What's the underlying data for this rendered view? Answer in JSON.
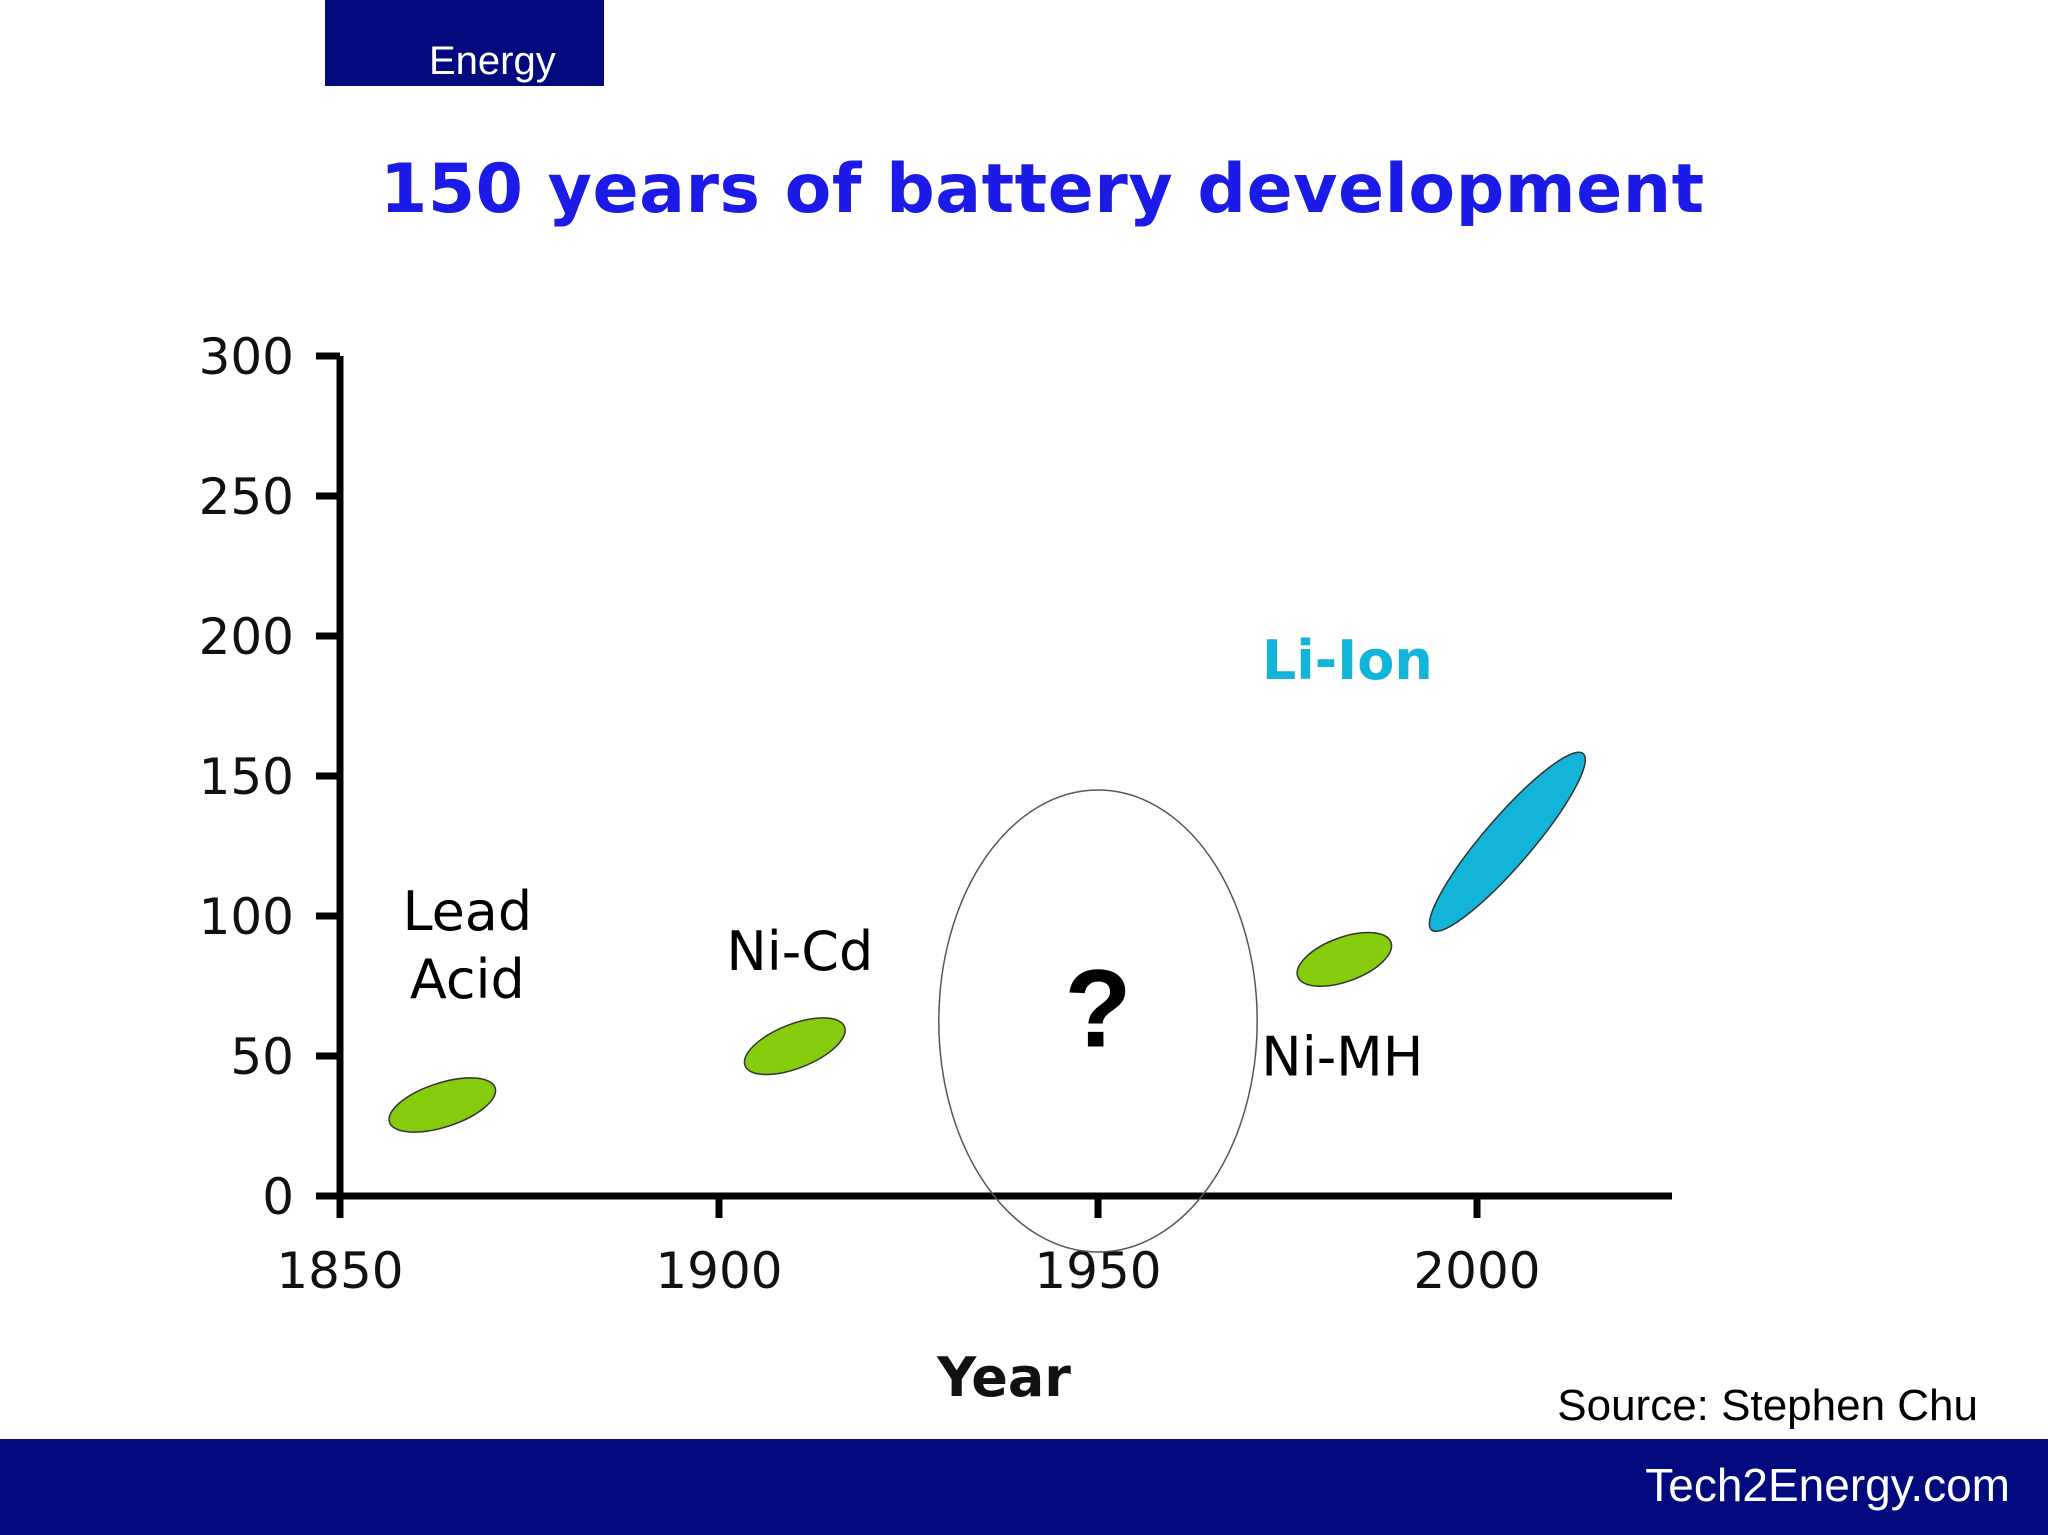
{
  "header": {
    "section_label": "Energy"
  },
  "footer": {
    "site": "Tech2Energy.com"
  },
  "source": "Source: Stephen Chu",
  "chart_data": {
    "type": "scatter",
    "title": "150 years of battery development",
    "xlabel": "Year",
    "ylabel": "",
    "xlim": [
      1850,
      2025
    ],
    "ylim": [
      0,
      300
    ],
    "x_ticks": [
      1850,
      1900,
      1950,
      2000
    ],
    "y_ticks": [
      0,
      50,
      100,
      150,
      200,
      250,
      300
    ],
    "grid": false,
    "series": [
      {
        "name": "Lead Acid",
        "label_lines": [
          "Lead",
          "Acid"
        ],
        "x_range": [
          1855,
          1872
        ],
        "y_range": [
          25,
          40
        ],
        "center": [
          1863,
          33
        ],
        "color": "#84cc0c",
        "label_color": "#000000"
      },
      {
        "name": "Ni-Cd",
        "label_lines": [
          "Ni-Cd"
        ],
        "x_range": [
          1902,
          1918
        ],
        "y_range": [
          45,
          62
        ],
        "center": [
          1910,
          54
        ],
        "color": "#84cc0c",
        "label_color": "#000000"
      },
      {
        "name": "Ni-MH",
        "label_lines": [
          "Ni-MH"
        ],
        "x_range": [
          1975,
          1990
        ],
        "y_range": [
          77,
          92
        ],
        "center": [
          1983,
          85
        ],
        "color": "#84cc0c",
        "label_color": "#000000"
      },
      {
        "name": "Li-Ion",
        "label_lines": [
          "Li-Ion"
        ],
        "x_range": [
          1994,
          2014
        ],
        "y_range": [
          95,
          158
        ],
        "center": [
          2004,
          127
        ],
        "color": "#12b4da",
        "label_color": "#12b4da"
      }
    ],
    "annotations": [
      {
        "text": "?",
        "x": 1950,
        "y": 62,
        "shape": "ellipse",
        "x_range": [
          1929,
          1971
        ],
        "y_range": [
          -20,
          145
        ]
      }
    ]
  }
}
